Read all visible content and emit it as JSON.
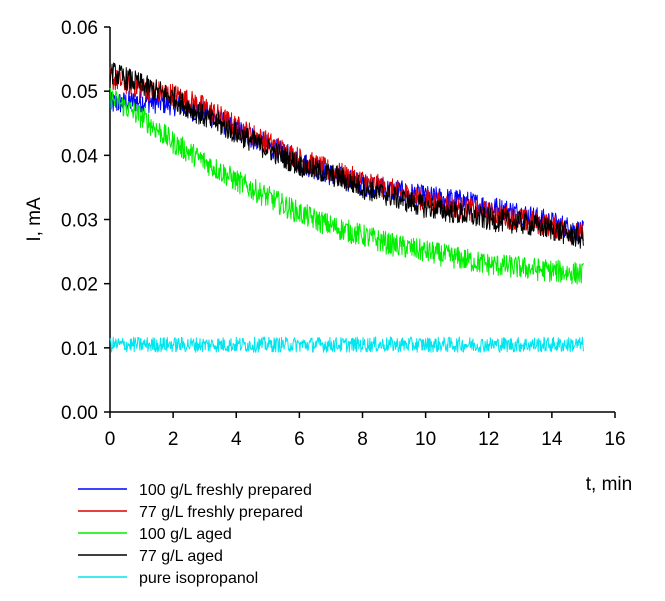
{
  "chart_data": {
    "type": "line",
    "title": "",
    "xlabel": "t, min",
    "ylabel": "I, mA",
    "xlim": [
      0,
      16
    ],
    "ylim": [
      0,
      0.06
    ],
    "x_ticks": [
      "0",
      "2",
      "4",
      "6",
      "8",
      "10",
      "12",
      "14",
      "16"
    ],
    "y_ticks": [
      "0.00",
      "0.01",
      "0.02",
      "0.03",
      "0.04",
      "0.05",
      "0.06"
    ],
    "grid": false,
    "legend_position": "bottom-left, below plot",
    "series": [
      {
        "name": "100 g/L freshly prepared",
        "color": "#0000ff",
        "noise": 0.0018,
        "x": [
          0,
          1,
          2,
          3,
          4,
          5,
          6,
          7,
          8,
          9,
          10,
          11,
          12,
          13,
          14,
          15
        ],
        "y": [
          0.048,
          0.0485,
          0.048,
          0.0465,
          0.044,
          0.0415,
          0.039,
          0.037,
          0.0355,
          0.0345,
          0.0335,
          0.033,
          0.032,
          0.031,
          0.0295,
          0.028
        ]
      },
      {
        "name": "77 g/L freshly prepared",
        "color": "#e00000",
        "noise": 0.0018,
        "x": [
          0,
          1,
          2,
          3,
          4,
          5,
          6,
          7,
          8,
          9,
          10,
          11,
          12,
          13,
          14,
          15
        ],
        "y": [
          0.052,
          0.0505,
          0.0495,
          0.0475,
          0.0445,
          0.042,
          0.0395,
          0.0375,
          0.036,
          0.0345,
          0.033,
          0.032,
          0.031,
          0.03,
          0.029,
          0.0275
        ]
      },
      {
        "name": "100 g/L aged",
        "color": "#00ee00",
        "noise": 0.0018,
        "x": [
          0,
          1,
          2,
          3,
          4,
          5,
          6,
          7,
          8,
          9,
          10,
          11,
          12,
          13,
          14,
          15
        ],
        "y": [
          0.049,
          0.046,
          0.042,
          0.039,
          0.036,
          0.0335,
          0.031,
          0.029,
          0.0275,
          0.026,
          0.025,
          0.024,
          0.023,
          0.0225,
          0.022,
          0.0215
        ]
      },
      {
        "name": "77 g/L aged",
        "color": "#000000",
        "noise": 0.0018,
        "x": [
          0,
          1,
          2,
          3,
          4,
          5,
          6,
          7,
          8,
          9,
          10,
          11,
          12,
          13,
          14,
          15
        ],
        "y": [
          0.053,
          0.051,
          0.049,
          0.046,
          0.0435,
          0.041,
          0.0385,
          0.037,
          0.035,
          0.0335,
          0.032,
          0.031,
          0.03,
          0.0295,
          0.0285,
          0.027
        ]
      },
      {
        "name": "pure isopropanol",
        "color": "#00e5ee",
        "noise": 0.0012,
        "x": [
          0,
          15
        ],
        "y": [
          0.0105,
          0.0105
        ]
      }
    ]
  }
}
